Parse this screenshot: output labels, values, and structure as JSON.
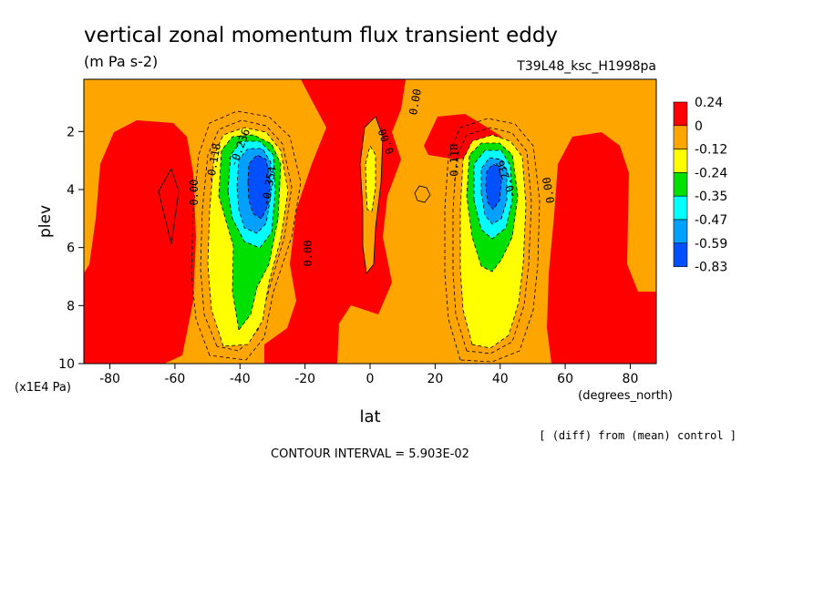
{
  "chart_data": {
    "type": "heatmap",
    "title": "vertical zonal momentum flux transient eddy",
    "units": "(m Pa s-2)",
    "run_label": "T39L48_ksc_H1998pa",
    "xlabel": "lat",
    "xunits": "(degrees_north)",
    "ylabel": "plev",
    "yunits": "(x1E4 Pa)",
    "xlim": [
      -88,
      88
    ],
    "ylim": [
      10,
      0.2
    ],
    "xticks": [
      -80,
      -60,
      -40,
      -20,
      0,
      20,
      40,
      60,
      80
    ],
    "xtick_labels": [
      "-80",
      "-60",
      "-40",
      "-20",
      "0",
      "20",
      "40",
      "60",
      "80"
    ],
    "yticks": [
      2,
      4,
      6,
      8,
      10
    ],
    "ytick_labels": [
      "2",
      "4",
      "6",
      "8",
      "10"
    ],
    "contour_interval": "CONTOUR INTERVAL = 5.903E-02",
    "note": "[ (diff) from (mean) control ]",
    "colorbar": {
      "labels": [
        "0.24",
        "0",
        "-0.12",
        "-0.24",
        "-0.35",
        "-0.47",
        "-0.59",
        "-0.83"
      ],
      "colors": [
        "#ff0000",
        "#ffa500",
        "#ffff00",
        "#00e000",
        "#00ffff",
        "#00a0ff",
        "#0050ff"
      ]
    },
    "contour_labels": [
      {
        "text": "0.00",
        "lat": -53,
        "p": 4.1,
        "rot": -90
      },
      {
        "text": "-0.118",
        "lat": -47,
        "p": 3.1,
        "rot": -80
      },
      {
        "text": "-0.236",
        "lat": -39,
        "p": 2.6,
        "rot": -70
      },
      {
        "text": "-0.354",
        "lat": -30,
        "p": 3.9,
        "rot": -80
      },
      {
        "text": "0.00",
        "lat": -18,
        "p": 6.2,
        "rot": -90
      },
      {
        "text": "0.00",
        "lat": 6,
        "p": 2.3,
        "rot": -110
      },
      {
        "text": "0.00",
        "lat": 15,
        "p": 1.0,
        "rot": -80
      },
      {
        "text": "-0.118",
        "lat": 27,
        "p": 3.1,
        "rot": -90
      },
      {
        "text": "-0.236",
        "lat": 43,
        "p": 3.6,
        "rot": -110
      },
      {
        "text": "0.00",
        "lat": 56,
        "p": 4.0,
        "rot": -100
      }
    ]
  }
}
